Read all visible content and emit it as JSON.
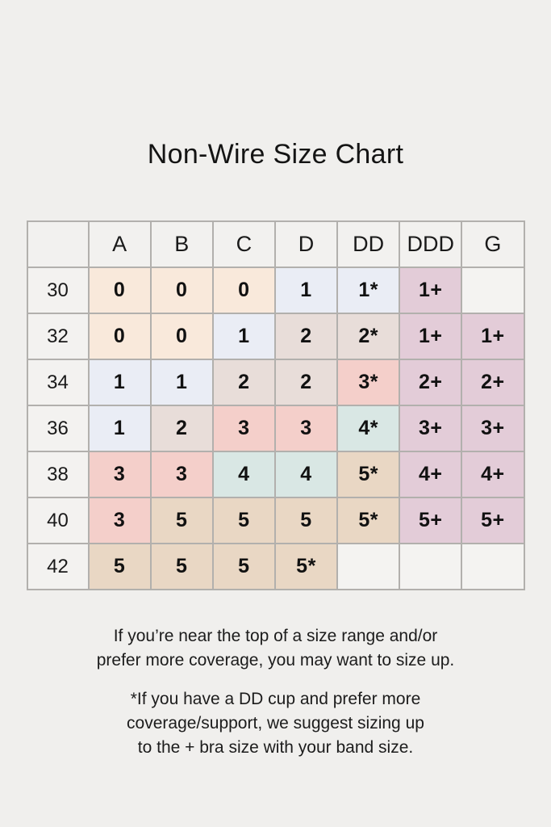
{
  "page": {
    "background": "#f0efed",
    "title": "Non-Wire Size Chart"
  },
  "colors": {
    "peach": "#f9e9db",
    "lavender": "#eaedf5",
    "dusty": "#e8ddd9",
    "pink": "#f4cfca",
    "teal": "#d9e7e4",
    "tan": "#e9d7c4",
    "mauve": "#e3ccd8",
    "none": "#f4f3f1",
    "border": "#b2b0ad"
  },
  "chart_data": {
    "type": "table",
    "title": "Non-Wire Size Chart",
    "columns": [
      "",
      "A",
      "B",
      "C",
      "D",
      "DD",
      "DDD",
      "G"
    ],
    "rows": [
      {
        "band": "30",
        "cells": [
          {
            "value": "0",
            "color": "peach"
          },
          {
            "value": "0",
            "color": "peach"
          },
          {
            "value": "0",
            "color": "peach"
          },
          {
            "value": "1",
            "color": "lavender"
          },
          {
            "value": "1*",
            "color": "lavender"
          },
          {
            "value": "1+",
            "color": "mauve"
          },
          {
            "value": "",
            "color": "none"
          }
        ]
      },
      {
        "band": "32",
        "cells": [
          {
            "value": "0",
            "color": "peach"
          },
          {
            "value": "0",
            "color": "peach"
          },
          {
            "value": "1",
            "color": "lavender"
          },
          {
            "value": "2",
            "color": "dusty"
          },
          {
            "value": "2*",
            "color": "dusty"
          },
          {
            "value": "1+",
            "color": "mauve"
          },
          {
            "value": "1+",
            "color": "mauve"
          }
        ]
      },
      {
        "band": "34",
        "cells": [
          {
            "value": "1",
            "color": "lavender"
          },
          {
            "value": "1",
            "color": "lavender"
          },
          {
            "value": "2",
            "color": "dusty"
          },
          {
            "value": "2",
            "color": "dusty"
          },
          {
            "value": "3*",
            "color": "pink"
          },
          {
            "value": "2+",
            "color": "mauve"
          },
          {
            "value": "2+",
            "color": "mauve"
          }
        ]
      },
      {
        "band": "36",
        "cells": [
          {
            "value": "1",
            "color": "lavender"
          },
          {
            "value": "2",
            "color": "dusty"
          },
          {
            "value": "3",
            "color": "pink"
          },
          {
            "value": "3",
            "color": "pink"
          },
          {
            "value": "4*",
            "color": "teal"
          },
          {
            "value": "3+",
            "color": "mauve"
          },
          {
            "value": "3+",
            "color": "mauve"
          }
        ]
      },
      {
        "band": "38",
        "cells": [
          {
            "value": "3",
            "color": "pink"
          },
          {
            "value": "3",
            "color": "pink"
          },
          {
            "value": "4",
            "color": "teal"
          },
          {
            "value": "4",
            "color": "teal"
          },
          {
            "value": "5*",
            "color": "tan"
          },
          {
            "value": "4+",
            "color": "mauve"
          },
          {
            "value": "4+",
            "color": "mauve"
          }
        ]
      },
      {
        "band": "40",
        "cells": [
          {
            "value": "3",
            "color": "pink"
          },
          {
            "value": "5",
            "color": "tan"
          },
          {
            "value": "5",
            "color": "tan"
          },
          {
            "value": "5",
            "color": "tan"
          },
          {
            "value": "5*",
            "color": "tan"
          },
          {
            "value": "5+",
            "color": "mauve"
          },
          {
            "value": "5+",
            "color": "mauve"
          }
        ]
      },
      {
        "band": "42",
        "cells": [
          {
            "value": "5",
            "color": "tan"
          },
          {
            "value": "5",
            "color": "tan"
          },
          {
            "value": "5",
            "color": "tan"
          },
          {
            "value": "5*",
            "color": "tan"
          },
          {
            "value": "",
            "color": "none"
          },
          {
            "value": "",
            "color": "none"
          },
          {
            "value": "",
            "color": "none"
          }
        ]
      }
    ]
  },
  "notes": {
    "note1": {
      "lines": [
        "If you’re near the top of a size range and/or",
        "prefer more coverage, you may want to size up."
      ]
    },
    "note2": {
      "lines": [
        "*If you have a DD cup and prefer more",
        "coverage/support, we suggest sizing up",
        "to the + bra size with your band size."
      ]
    }
  }
}
